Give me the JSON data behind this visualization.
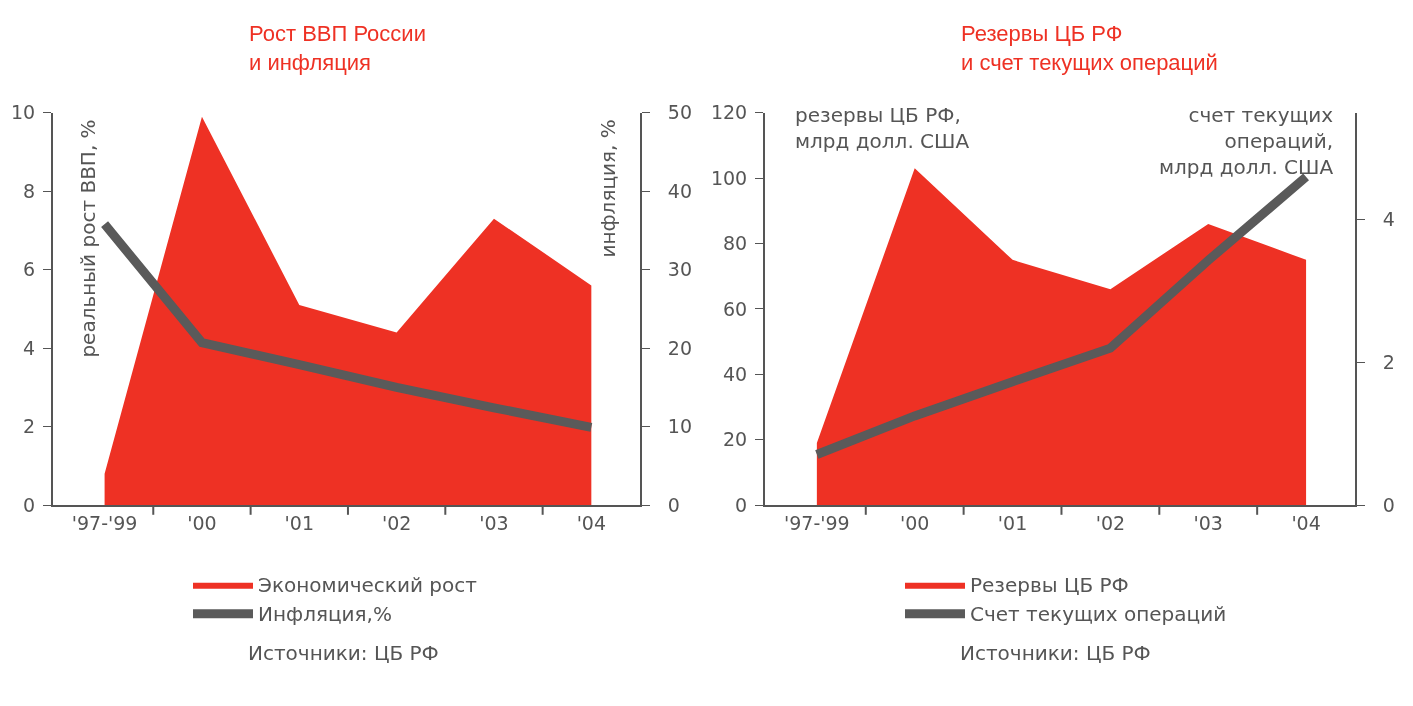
{
  "chart_data": [
    {
      "type": "area",
      "title": "Рост ВВП России\nи инфляция",
      "ylabel": "реальный рост ВВП, %",
      "y2label": "инфляция, %",
      "categories": [
        "'97-'99",
        "'00",
        "'01",
        "'02",
        "'03",
        "'04"
      ],
      "series": [
        {
          "name": "Экономический рост",
          "color": "#ee3124",
          "values": [
            0.8,
            9.9,
            5.1,
            4.4,
            7.3,
            5.6
          ]
        },
        {
          "name": "Инфляция,%",
          "type": "line",
          "axis": "y2",
          "color": "#5a5a5a",
          "values": [
            35.8,
            20.7,
            17.9,
            15.0,
            12.4,
            9.9
          ]
        }
      ],
      "ylim": [
        0,
        10
      ],
      "yticks": [
        0,
        2,
        4,
        6,
        8,
        10
      ],
      "y2lim": [
        0,
        50
      ],
      "y2ticks": [
        0,
        10,
        20,
        30,
        40,
        50
      ],
      "legend": "bottom",
      "marker": "none",
      "annotations": [
        "Источники: ЦБ РФ"
      ]
    },
    {
      "type": "area",
      "title": "Резервы ЦБ РФ\nи счет текущих операций",
      "ylabel": "резервы ЦБ РФ,\nмлрд долл. США",
      "y2label": "счет текущих\nопераций,\nмлрд долл. США",
      "categories": [
        "'97-'99",
        "'00",
        "'01",
        "'02",
        "'03",
        "'04"
      ],
      "series": [
        {
          "name": "Резервы ЦБ РФ",
          "color": "#ee3124",
          "values": [
            19,
            103,
            75,
            66,
            86,
            75
          ]
        },
        {
          "name": "Счет текущих операций",
          "type": "line",
          "axis": "y2",
          "color": "#5a5a5a",
          "values": [
            0.71,
            1.25,
            1.73,
            2.2,
            3.43,
            4.6
          ]
        }
      ],
      "ylim": [
        0,
        120
      ],
      "yticks": [
        0,
        20,
        40,
        60,
        80,
        100,
        120
      ],
      "y2lim": [
        0,
        5.5
      ],
      "y2ticks": [
        0,
        2,
        4
      ],
      "legend": "bottom",
      "marker": "none",
      "annotations": [
        "Источники: ЦБ РФ"
      ]
    }
  ]
}
